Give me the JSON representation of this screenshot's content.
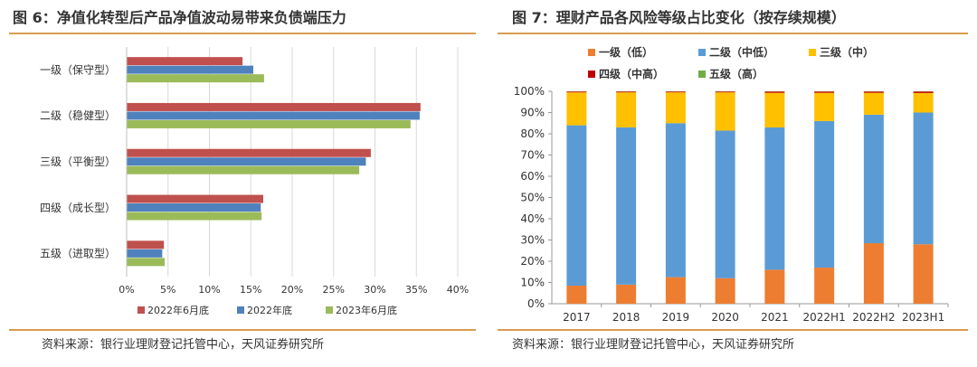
{
  "left": {
    "title": "图 6：净值化转型后产品净值波动易带来负债端压力",
    "source": "资料来源：银行业理财登记托管中心，天风证券研究所",
    "chart_data": {
      "type": "bar",
      "orientation": "horizontal",
      "categories": [
        "一级（保守型）",
        "二级（稳健型）",
        "三级（平衡型）",
        "四级（成长型）",
        "五级（进取型）"
      ],
      "series": [
        {
          "name": "2022年6月底",
          "color": "#c0504d",
          "values": [
            14.0,
            35.5,
            29.5,
            16.5,
            4.5
          ]
        },
        {
          "name": "2022年底",
          "color": "#4f81bd",
          "values": [
            15.3,
            35.4,
            28.9,
            16.2,
            4.3
          ]
        },
        {
          "name": "2023年6月底",
          "color": "#9bbb59",
          "values": [
            16.6,
            34.3,
            28.1,
            16.3,
            4.6
          ]
        }
      ],
      "xlim": [
        0,
        40
      ],
      "xticks": [
        "0%",
        "5%",
        "10%",
        "15%",
        "20%",
        "25%",
        "30%",
        "35%",
        "40%"
      ],
      "grid": true,
      "legend_position": "bottom"
    }
  },
  "right": {
    "title": "图 7：理财产品各风险等级占比变化（按存续规模）",
    "source": "资料来源：银行业理财登记托管中心，天风证券研究所",
    "chart_data": {
      "type": "bar",
      "stacked": true,
      "categories": [
        "2017",
        "2018",
        "2019",
        "2020",
        "2021",
        "2022H1",
        "2022H2",
        "2023H1"
      ],
      "series": [
        {
          "name": "一级（低）",
          "color": "#ed7d31",
          "values": [
            8.5,
            9.0,
            12.5,
            12.0,
            16.0,
            17.0,
            28.5,
            28.0
          ]
        },
        {
          "name": "二级（中低）",
          "color": "#5b9bd5",
          "values": [
            75.5,
            74.0,
            72.5,
            69.5,
            67.0,
            69.0,
            60.5,
            62.0
          ]
        },
        {
          "name": "三级（中）",
          "color": "#ffc000",
          "values": [
            15.5,
            16.5,
            14.5,
            18.0,
            16.3,
            13.3,
            10.3,
            9.2
          ]
        },
        {
          "name": "四级（中高）",
          "color": "#c00000",
          "values": [
            0.4,
            0.4,
            0.4,
            0.4,
            0.6,
            0.6,
            0.6,
            0.7
          ]
        },
        {
          "name": "五级（高）",
          "color": "#70ad47",
          "values": [
            0.1,
            0.1,
            0.1,
            0.1,
            0.1,
            0.1,
            0.1,
            0.1
          ]
        }
      ],
      "ylim": [
        0,
        100
      ],
      "yticks": [
        "0%",
        "10%",
        "20%",
        "30%",
        "40%",
        "50%",
        "60%",
        "70%",
        "80%",
        "90%",
        "100%"
      ],
      "grid": false,
      "legend_position": "top"
    }
  }
}
